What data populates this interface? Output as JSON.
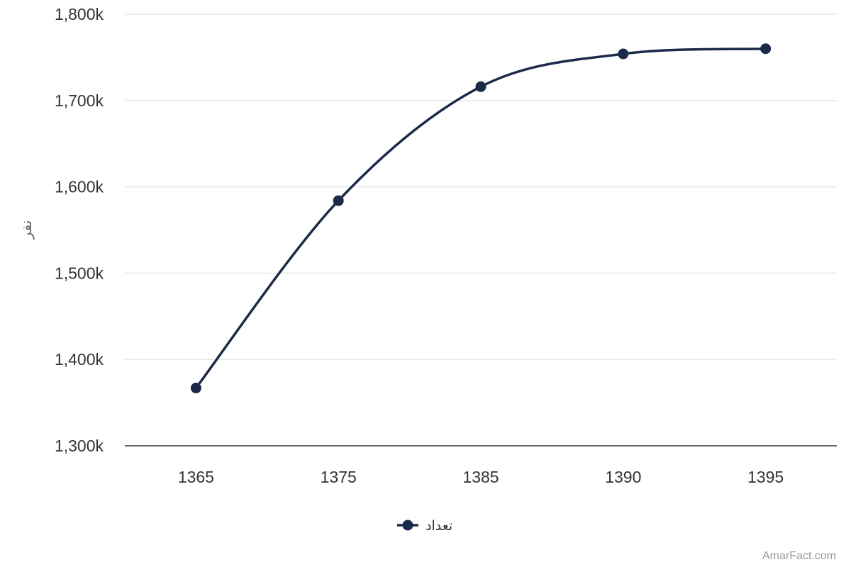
{
  "chart_data": {
    "type": "line",
    "categories": [
      "1365",
      "1375",
      "1385",
      "1390",
      "1395"
    ],
    "series": [
      {
        "name": "تعداد",
        "values": [
          1367000,
          1584000,
          1716000,
          1754000,
          1760000
        ],
        "color": "#1b2a4a"
      }
    ],
    "ylabel": "نفر",
    "ylim": [
      1300000,
      1800000
    ],
    "yticks": [
      1300000,
      1400000,
      1500000,
      1600000,
      1700000,
      1800000
    ],
    "ytick_labels": [
      "1,300k",
      "1,400k",
      "1,500k",
      "1,600k",
      "1,700k",
      "1,800k"
    ],
    "grid": true,
    "legend_position": "bottom-center"
  },
  "credit": "AmarFact.com",
  "colors": {
    "grid": "#e6e6e6",
    "axis": "#333333"
  }
}
